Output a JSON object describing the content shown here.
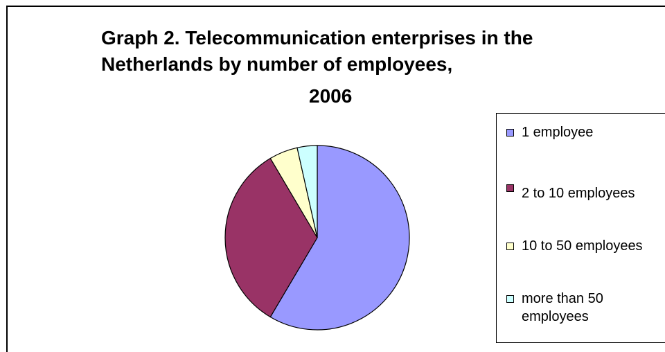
{
  "chart_data": {
    "type": "pie",
    "title_lines": [
      "Graph 2. Telecommunication enterprises in the",
      "Netherlands by number of employees,",
      "2006"
    ],
    "categories": [
      "1 employee",
      "2 to 10 employees",
      "10 to 50 employees",
      "more than 50 employees"
    ],
    "values": [
      58.5,
      33.0,
      5.0,
      3.5
    ],
    "colors": [
      "#9999ff",
      "#993366",
      "#ffffcc",
      "#ccffff"
    ],
    "legend_position": "right",
    "legend_labels": [
      [
        "1 employee"
      ],
      [
        "2 to 10 employees"
      ],
      [
        "10 to 50 employees"
      ],
      [
        "more than 50",
        "employees"
      ]
    ]
  }
}
